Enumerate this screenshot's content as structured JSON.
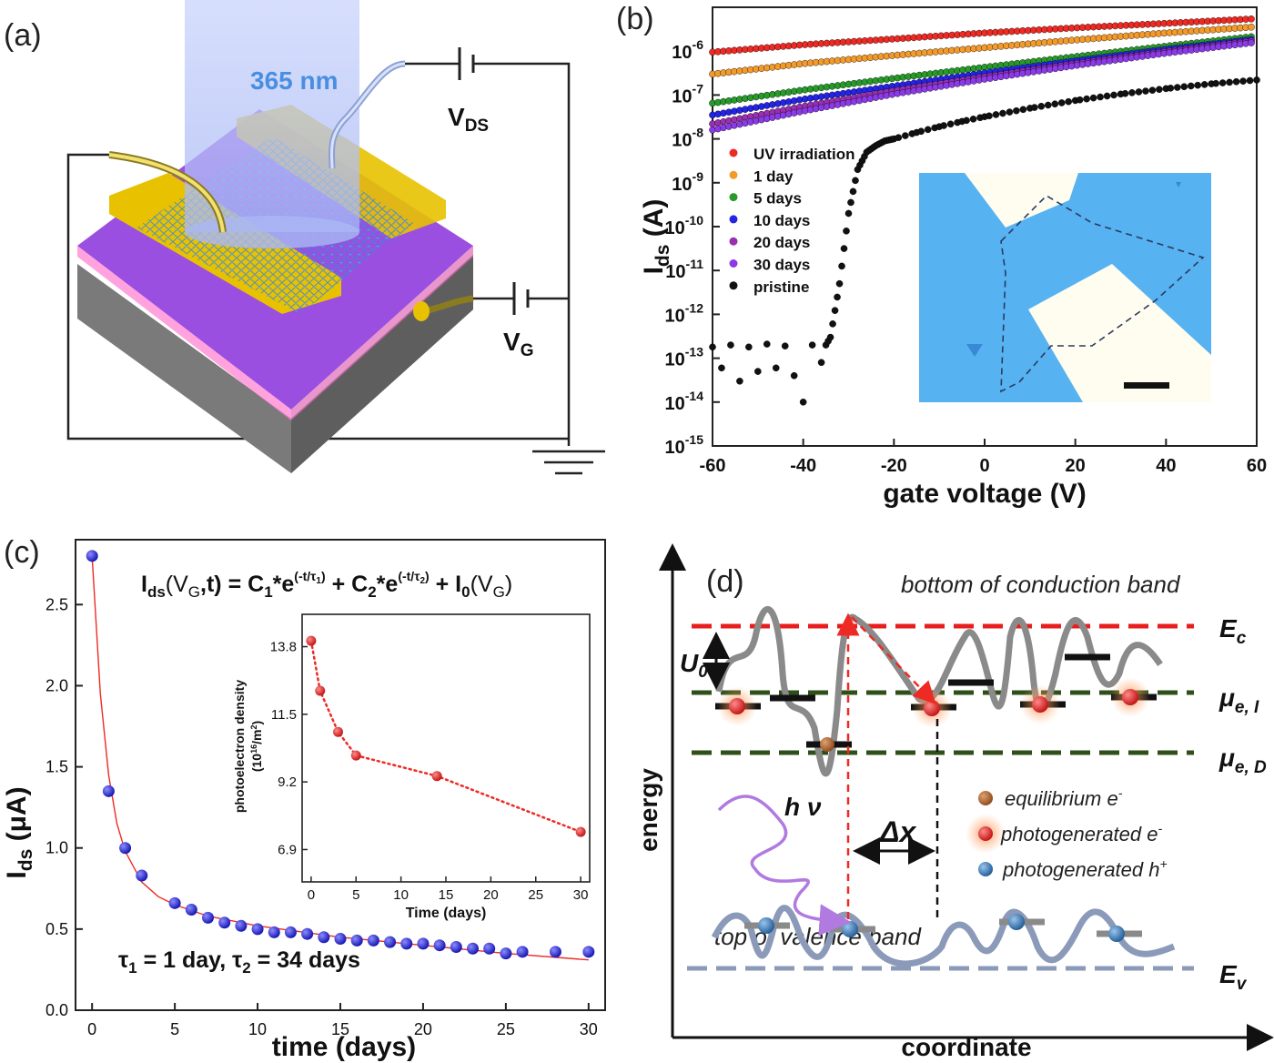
{
  "panels": {
    "a": {
      "label": "(a)",
      "wavelength": "365 nm",
      "vds_main": "V",
      "vds_sub": "DS",
      "vg_main": "V",
      "vg_sub": "G",
      "colors": {
        "substrate": "#8a8a8a",
        "oxide": "#9b4fe0",
        "electrode": "#e8c200",
        "beam": "#b9c8f5",
        "lattice": "#3b86d6"
      }
    },
    "b": {
      "label": "(b)",
      "ylabel_main": "I",
      "ylabel_sub": "ds",
      "ylabel_unit": " (A)",
      "xlabel": "gate voltage (V)"
    },
    "c": {
      "label": "(c)",
      "eq": {
        "a": "I",
        "b": "ds",
        "c": "(V",
        "d": "G",
        "e": ",t) = C",
        "f": "1",
        "g": "*e",
        "h": "(-t/τ",
        "i": "1",
        "j": ")",
        "k": " + C",
        "l": "2",
        "m": "*e",
        "n": "(-t/τ",
        "o": "2",
        "p": ")",
        "q": " + I",
        "r": "0",
        "s": "(V",
        "t": "G",
        "u": ")"
      },
      "ylabel_main": "I",
      "ylabel_sub": "ds",
      "ylabel_unit": " (μA)",
      "xlabel": "time (days)",
      "tau_text": {
        "t1": "τ",
        "s1": "1",
        "m1": " = 1 day,  τ",
        "s2": "2",
        "m2": " = 34 days"
      }
    },
    "d": {
      "label": "(d)",
      "cb_label": "bottom of conduction band",
      "vb_label": "top of valence band",
      "ec_main": "E",
      "ec_sub": "c",
      "mui_main": "μ",
      "mui_sub": "e, I",
      "mud_main": "μ",
      "mud_sub": "e, D",
      "ev_main": "E",
      "ev_sub": "v",
      "u0_main": "U",
      "u0_sub": "0",
      "hv": "h ν",
      "dx": "Δx",
      "legend": [
        {
          "main": "equilibrium e",
          "sup": "-"
        },
        {
          "main": "photogenerated e",
          "sup": "-"
        },
        {
          "main": "photogenerated h",
          "sup": "+"
        }
      ],
      "ylabel": "energy",
      "xlabel": "coordinate"
    }
  },
  "chart_data": [
    {
      "panel": "b",
      "type": "scatter",
      "yscale": "log",
      "xlim": [
        -60,
        60
      ],
      "ylim": [
        1e-15,
        1e-05
      ],
      "xticks": [
        "-60",
        "-40",
        "-20",
        "0",
        "20",
        "40",
        "60"
      ],
      "yticks": [
        {
          "m": "10",
          "e": "-15"
        },
        {
          "m": "10",
          "e": "-14"
        },
        {
          "m": "10",
          "e": "-13"
        },
        {
          "m": "10",
          "e": "-12"
        },
        {
          "m": "10",
          "e": "-11"
        },
        {
          "m": "10",
          "e": "-10"
        },
        {
          "m": "10",
          "e": "-9"
        },
        {
          "m": "10",
          "e": "-8"
        },
        {
          "m": "10",
          "e": "-7"
        },
        {
          "m": "10",
          "e": "-6"
        }
      ],
      "legend_position": "left",
      "series": [
        {
          "name": "UV irradiation",
          "color": "#ee2a24",
          "x": [
            -60,
            -40,
            -20,
            0,
            20,
            40,
            60
          ],
          "y": [
            9.5e-07,
            1.4e-06,
            1.9e-06,
            2.6e-06,
            3.4e-06,
            4.3e-06,
            5.5e-06
          ]
        },
        {
          "name": "1 day",
          "color": "#f39a2b",
          "x": [
            -60,
            -40,
            -20,
            0,
            20,
            40,
            60
          ],
          "y": [
            3e-07,
            5.2e-07,
            8e-07,
            1.2e-06,
            1.8e-06,
            2.6e-06,
            3.6e-06
          ]
        },
        {
          "name": "5 days",
          "color": "#279a2a",
          "x": [
            -60,
            -40,
            -20,
            0,
            20,
            40,
            60
          ],
          "y": [
            6.5e-08,
            1.3e-07,
            2.4e-07,
            4.3e-07,
            7.5e-07,
            1.3e-06,
            2.2e-06
          ]
        },
        {
          "name": "10 days",
          "color": "#2424e6",
          "x": [
            -60,
            -40,
            -20,
            0,
            20,
            40,
            60
          ],
          "y": [
            3.5e-08,
            8e-08,
            1.6e-07,
            3.2e-07,
            6e-07,
            1.1e-06,
            1.9e-06
          ]
        },
        {
          "name": "20 days",
          "color": "#9a2fb0",
          "x": [
            -60,
            -40,
            -20,
            0,
            20,
            40,
            60
          ],
          "y": [
            2.2e-08,
            5.5e-08,
            1.25e-07,
            2.6e-07,
            5.2e-07,
            9.8e-07,
            1.75e-06
          ]
        },
        {
          "name": "30 days",
          "color": "#8a3ae6",
          "x": [
            -60,
            -40,
            -20,
            0,
            20,
            40,
            60
          ],
          "y": [
            1.6e-08,
            4.3e-08,
            1.05e-07,
            2.3e-07,
            4.7e-07,
            9e-07,
            1.6e-06
          ]
        },
        {
          "name": "pristine",
          "color": "#111111",
          "x": [
            -60,
            -58,
            -56,
            -54,
            -52,
            -50,
            -48,
            -46,
            -44,
            -42,
            -40,
            -38,
            -36,
            -35,
            -34,
            -32,
            -30,
            -28,
            -26,
            -24,
            -22,
            -20,
            -15,
            -10,
            -5,
            0,
            10,
            20,
            30,
            40,
            50,
            60
          ],
          "y": [
            1.8e-13,
            6e-14,
            2e-13,
            3e-14,
            1.8e-13,
            5e-14,
            2.1e-13,
            6e-14,
            1.9e-13,
            4e-14,
            1e-14,
            2e-13,
            8e-14,
            2e-13,
            3e-13,
            5e-12,
            2e-10,
            2e-09,
            5e-09,
            7e-09,
            9e-09,
            1e-08,
            1.4e-08,
            1.9e-08,
            2.5e-08,
            3.2e-08,
            5e-08,
            7.5e-08,
            1.05e-07,
            1.4e-07,
            1.8e-07,
            2.2e-07
          ]
        }
      ]
    },
    {
      "panel": "c",
      "type": "scatter",
      "xlim": [
        -1,
        31
      ],
      "ylim": [
        0,
        2.9
      ],
      "xticks": [
        "0",
        "5",
        "10",
        "15",
        "20",
        "25",
        "30"
      ],
      "yticks": [
        "0.0",
        "0.5",
        "1.0",
        "1.5",
        "2.0",
        "2.5"
      ],
      "series": [
        {
          "name": "data",
          "color": "#1a1ae0",
          "x": [
            0,
            1,
            2,
            3,
            5,
            6,
            7,
            8,
            9,
            10,
            11,
            12,
            13,
            14,
            15,
            16,
            17,
            18,
            19,
            20,
            21,
            22,
            23,
            24,
            25,
            26,
            28,
            30
          ],
          "y": [
            2.8,
            1.35,
            1.0,
            0.83,
            0.66,
            0.62,
            0.57,
            0.54,
            0.52,
            0.5,
            0.48,
            0.48,
            0.47,
            0.45,
            0.44,
            0.43,
            0.43,
            0.42,
            0.41,
            0.41,
            0.4,
            0.39,
            0.38,
            0.38,
            0.35,
            0.36,
            0.36,
            0.36
          ]
        },
        {
          "name": "fit",
          "color": "#ee2a24",
          "x": [
            0,
            0.5,
            1,
            1.5,
            2,
            3,
            4,
            5,
            7,
            10,
            15,
            20,
            25,
            30
          ],
          "y": [
            2.8,
            1.95,
            1.45,
            1.15,
            0.98,
            0.79,
            0.7,
            0.65,
            0.58,
            0.52,
            0.45,
            0.4,
            0.35,
            0.31
          ]
        }
      ]
    },
    {
      "panel": "c-inset",
      "type": "line",
      "xlim": [
        -1,
        31
      ],
      "ylim": [
        5.8,
        14.9
      ],
      "xlabel": "Time (days)",
      "ylabel_line1": "photoelectron density",
      "ylabel_line2_a": "(10",
      "ylabel_line2_b": "16",
      "ylabel_line2_c": "/m",
      "ylabel_line2_d": "2",
      "ylabel_line2_e": ")",
      "xticks": [
        "0",
        "5",
        "10",
        "15",
        "20",
        "25",
        "30"
      ],
      "yticks": [
        "6.9",
        "9.2",
        "11.5",
        "13.8"
      ],
      "series": [
        {
          "color": "#ee2a24",
          "x": [
            0,
            1,
            3,
            5,
            14,
            30
          ],
          "y": [
            14.0,
            12.3,
            10.9,
            10.1,
            9.4,
            7.5
          ]
        }
      ]
    }
  ]
}
